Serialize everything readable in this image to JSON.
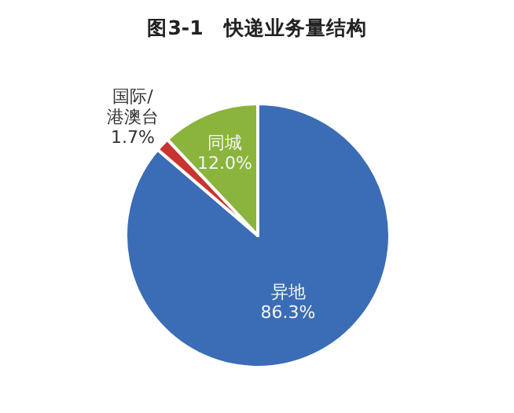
{
  "chart_data": {
    "type": "pie",
    "title": "图3-1　快递业务量结构",
    "categories": [
      "异地",
      "国际/港澳台",
      "同城"
    ],
    "values": [
      86.3,
      1.7,
      12.0
    ],
    "value_labels": [
      "86.3%",
      "1.7%",
      "12.0%"
    ],
    "colors": [
      "#3a6db5",
      "#c8342f",
      "#8ab43c"
    ]
  }
}
